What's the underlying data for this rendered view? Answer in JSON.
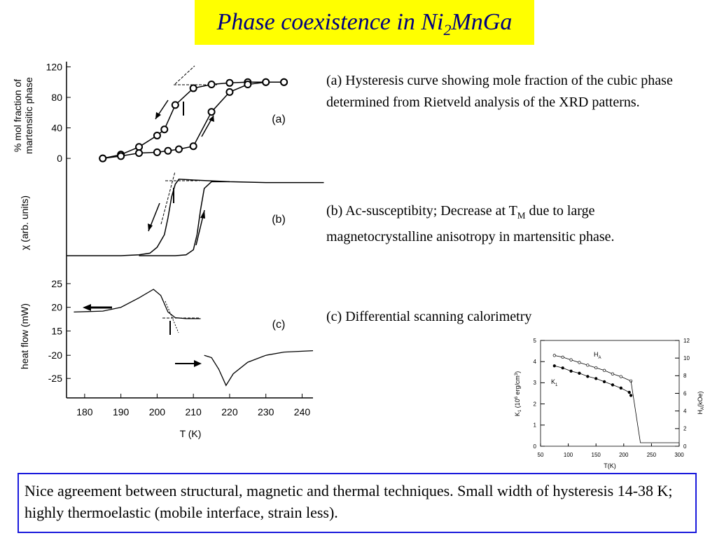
{
  "title": {
    "text": "Phase coexistence in Ni",
    "sub": "2",
    "rest": "MnGa"
  },
  "captions": {
    "a": "(a) Hysteresis curve showing mole fraction of the cubic phase determined  from Rietveld analysis of the XRD patterns.",
    "b": {
      "before": "(b) Ac-susceptibity; Decrease at T",
      "sub": "M",
      "after": " due to large magnetocrystalline anisotropy in martensitic phase."
    },
    "c": "(c) Differential scanning calorimetry"
  },
  "summary": "Nice agreement between structural, magnetic and thermal techniques. Small width of hysteresis 14-38 K; highly thermoelastic (mobile interface, strain less).",
  "chart_data": [
    {
      "type": "line",
      "panel_label": "(a)",
      "y_label_lines": [
        "% mol fraction of",
        "martensitic phase"
      ],
      "xlim": [
        175,
        243
      ],
      "ylim": [
        -10,
        125
      ],
      "yticks": [
        0,
        40,
        80,
        120
      ],
      "series": [
        {
          "color": "#000000",
          "markers": true,
          "x": [
            185,
            190,
            195,
            200,
            202,
            205,
            210,
            215,
            220,
            225,
            230,
            235
          ],
          "values": [
            0,
            5,
            15,
            30,
            38,
            70,
            92,
            97,
            99,
            100,
            100,
            100
          ]
        },
        {
          "color": "#000000",
          "markers": true,
          "x": [
            185,
            190,
            195,
            200,
            203,
            206,
            210,
            215,
            220,
            225,
            230,
            235
          ],
          "values": [
            0,
            3,
            7,
            8,
            10,
            12,
            16,
            61,
            87,
            97,
            100,
            100
          ]
        }
      ]
    },
    {
      "type": "line",
      "panel_label": "(b)",
      "ylabel": "χ (arb. units)",
      "xlim": [
        175,
        243
      ],
      "ylim": [
        0,
        1
      ],
      "series": [
        {
          "color": "#000000",
          "markers": false,
          "x": [
            175,
            190,
            195,
            198,
            200,
            202,
            203,
            204,
            205,
            206,
            210,
            220,
            230,
            246
          ],
          "values": [
            0.05,
            0.05,
            0.06,
            0.08,
            0.15,
            0.3,
            0.5,
            0.75,
            0.9,
            0.96,
            0.95,
            0.93,
            0.92,
            0.92
          ]
        },
        {
          "color": "#000000",
          "markers": false,
          "x": [
            195,
            205,
            208,
            210,
            211,
            212,
            213,
            215,
            220
          ],
          "values": [
            0.05,
            0.05,
            0.06,
            0.12,
            0.3,
            0.6,
            0.85,
            0.93,
            0.93
          ]
        }
      ]
    },
    {
      "type": "broken-line",
      "panel_label": "(c)",
      "ylabel": "heat flow (mW)",
      "xlabel": "T (K)",
      "xlim": [
        175,
        243
      ],
      "xticks": [
        180,
        190,
        200,
        210,
        220,
        230,
        240
      ],
      "ylim_upper": [
        13,
        27.2
      ],
      "yticks_upper": [
        15,
        20,
        25
      ],
      "ylim_lower": [
        -29.2,
        -17.4
      ],
      "yticks_lower": [
        -25,
        -20
      ],
      "series": [
        {
          "color": "#000000",
          "axis": "upper",
          "x": [
            177,
            185,
            190,
            195,
            199,
            201,
            203,
            205,
            208,
            212
          ],
          "values": [
            19,
            19.2,
            20,
            22,
            23.8,
            22.5,
            19,
            17.8,
            17.6,
            17.6
          ]
        },
        {
          "color": "#000000",
          "axis": "lower",
          "x": [
            213,
            215,
            217,
            219,
            221,
            225,
            230,
            235,
            243
          ],
          "values": [
            -20,
            -20.5,
            -23,
            -26.5,
            -24,
            -21.5,
            -20,
            -19.3,
            -19
          ]
        }
      ]
    },
    {
      "type": "line",
      "xlabel": "T(K)",
      "ylabel": [
        "K",
        "1",
        " (10",
        "6",
        " erg/cm",
        "3",
        ")"
      ],
      "y2label": [
        "H",
        "A",
        "(kOe)"
      ],
      "xlim": [
        50,
        300
      ],
      "xticks": [
        50,
        100,
        150,
        200,
        250,
        300
      ],
      "ylim": [
        0,
        5
      ],
      "yticks": [
        0,
        1,
        2,
        3,
        4,
        5
      ],
      "y2lim": [
        0,
        12
      ],
      "y2ticks": [
        0,
        2,
        4,
        6,
        8,
        10,
        12
      ],
      "series": [
        {
          "label": {
            "text": "H",
            "sub": "A"
          },
          "axis": "y2",
          "marker": "open",
          "color": "#000000",
          "x": [
            75,
            90,
            105,
            120,
            135,
            150,
            165,
            180,
            195,
            213
          ],
          "values": [
            10.3,
            10.1,
            9.8,
            9.5,
            9.2,
            8.9,
            8.6,
            8.2,
            7.9,
            7.4
          ]
        },
        {
          "axis": "y2",
          "marker": "none",
          "color": "#000000",
          "x": [
            213,
            230,
            300
          ],
          "values": [
            7.4,
            0.4,
            0.4
          ]
        },
        {
          "label": {
            "text": "K",
            "sub": "1"
          },
          "axis": "y",
          "marker": "filled",
          "color": "#000000",
          "x": [
            75,
            90,
            105,
            120,
            135,
            150,
            165,
            180,
            195,
            210,
            213
          ],
          "values": [
            3.8,
            3.7,
            3.55,
            3.45,
            3.3,
            3.2,
            3.05,
            2.9,
            2.75,
            2.55,
            2.4
          ]
        }
      ]
    }
  ]
}
